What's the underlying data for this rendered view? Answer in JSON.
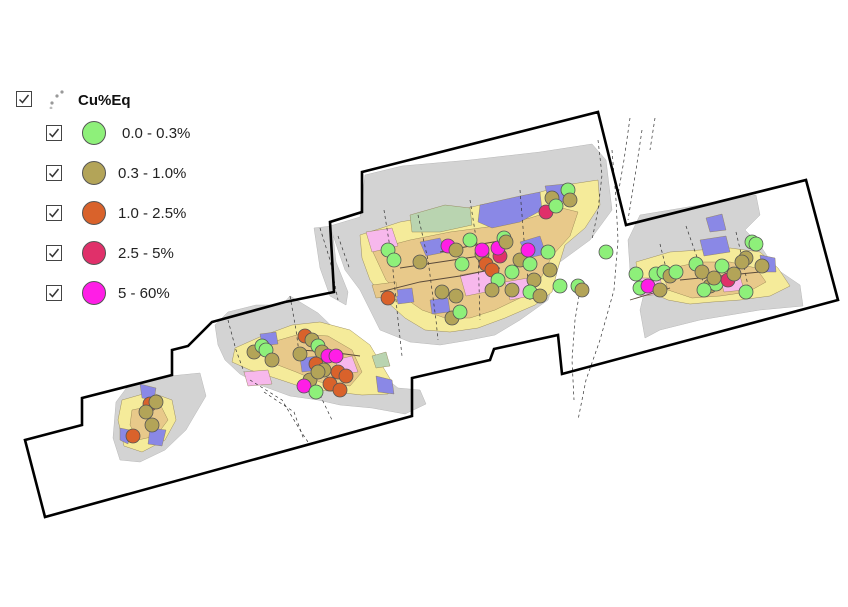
{
  "legend": {
    "layer_name": "Cu%Eq",
    "layer_checked": true,
    "classes": [
      {
        "label": "0.0 - 0.3%",
        "color": "#8ef07a",
        "checked": true
      },
      {
        "label": "0.3 - 1.0%",
        "color": "#b3a458",
        "checked": true
      },
      {
        "label": "1.0 - 2.5%",
        "color": "#d9622b",
        "checked": true
      },
      {
        "label": "2.5 - 5%",
        "color": "#e0306a",
        "checked": true
      },
      {
        "label": "5 - 60%",
        "color": "#ff1ee6",
        "checked": true
      }
    ]
  },
  "colors": {
    "outcrop_grey": "#d3d3d3",
    "unit_yellow": "#f5eb9a",
    "unit_tan": "#e8c98a",
    "unit_blue": "#8a88e6",
    "unit_pink": "#f7b8ec",
    "unit_green": "#b9d4b0",
    "boundary": "#000000"
  },
  "icons": [
    "checkbox-icon",
    "points-layer-icon"
  ]
}
